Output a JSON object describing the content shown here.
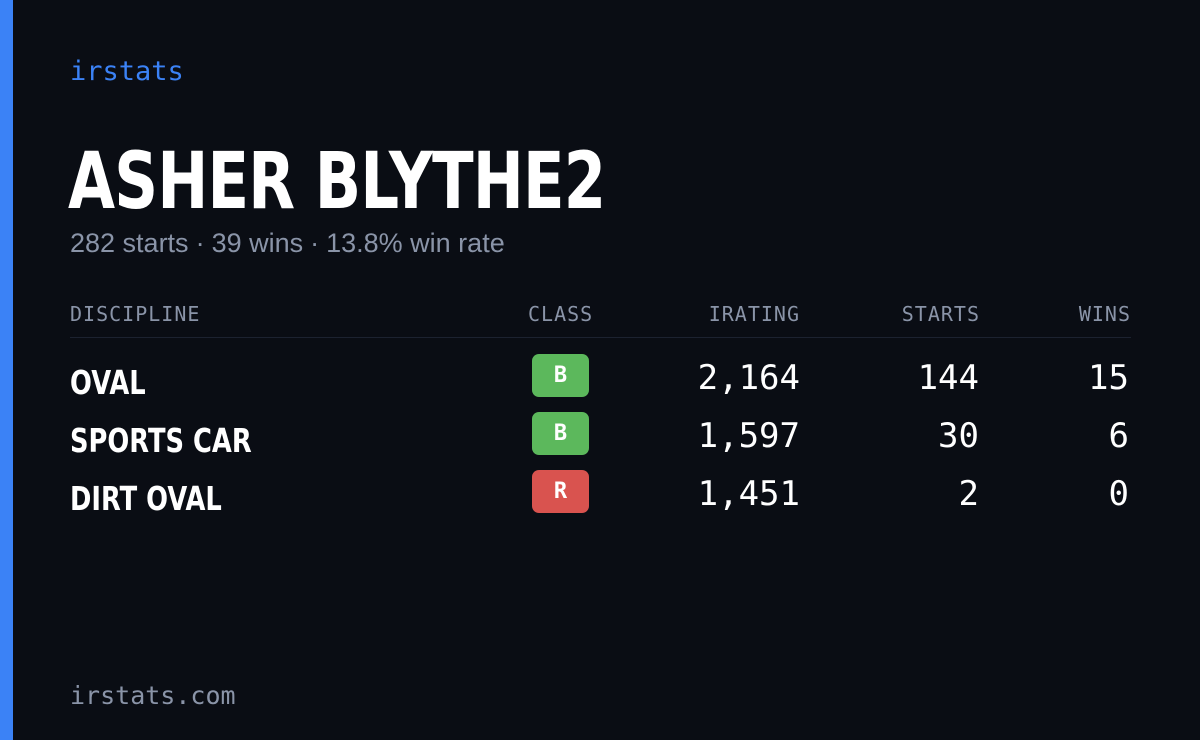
{
  "brand": "irstats",
  "driver": {
    "name": "ASHER BLYTHE2",
    "starts": "282 starts",
    "wins": "39 wins",
    "win_rate": "13.8% win rate",
    "separator": "·"
  },
  "table": {
    "headers": {
      "discipline": "DISCIPLINE",
      "class": "CLASS",
      "irating": "IRATING",
      "starts": "STARTS",
      "wins": "WINS"
    },
    "rows": [
      {
        "discipline": "OVAL",
        "class": "B",
        "class_color": "#5cb85c",
        "irating": "2,164",
        "starts": "144",
        "wins": "15"
      },
      {
        "discipline": "SPORTS CAR",
        "class": "B",
        "class_color": "#5cb85c",
        "irating": "1,597",
        "starts": "30",
        "wins": "6"
      },
      {
        "discipline": "DIRT OVAL",
        "class": "R",
        "class_color": "#d9534f",
        "irating": "1,451",
        "starts": "2",
        "wins": "0"
      }
    ]
  },
  "footer": "irstats.com",
  "colors": {
    "background": "#0a0d14",
    "accent": "#3b82f6",
    "muted": "#8a94a8",
    "text": "#ffffff"
  }
}
